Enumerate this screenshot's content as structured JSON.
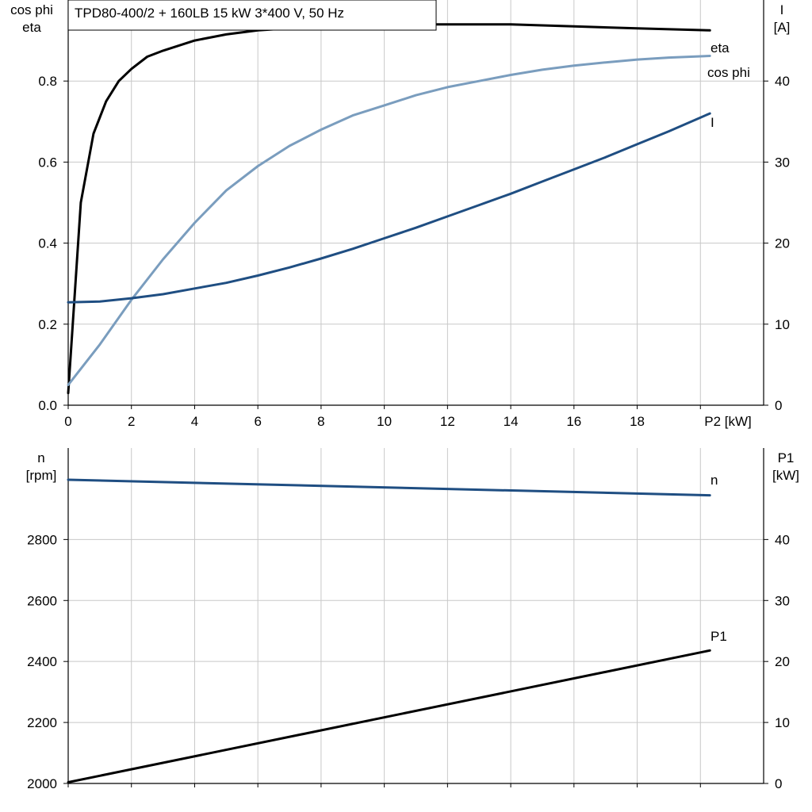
{
  "chart_data": [
    {
      "type": "line",
      "title": "TPD80-400/2 + 160LB   15 kW   3*400 V, 50 Hz",
      "xlabel": "P2 [kW]",
      "ylabel_left": [
        "cos phi",
        "eta"
      ],
      "ylabel_right": [
        "I",
        "[A]"
      ],
      "xlim": [
        0,
        22
      ],
      "ylim_left": [
        0,
        1.0
      ],
      "ylim_right": [
        0,
        50
      ],
      "x_ticks": [
        "0",
        "2",
        "4",
        "6",
        "8",
        "10",
        "12",
        "14",
        "16",
        "18"
      ],
      "y_ticks_left": [
        "0.0",
        "0.2",
        "0.4",
        "0.6",
        "0.8"
      ],
      "y_ticks_right": [
        "0",
        "10",
        "20",
        "30",
        "40"
      ],
      "grid": true,
      "series": [
        {
          "name": "eta",
          "axis": "left",
          "color": "#000000",
          "x": [
            0,
            0.4,
            0.8,
            1.2,
            1.6,
            2,
            2.5,
            3,
            4,
            5,
            6,
            8,
            10,
            12,
            14,
            16,
            18,
            20.3
          ],
          "y": [
            0.03,
            0.5,
            0.67,
            0.75,
            0.8,
            0.83,
            0.86,
            0.875,
            0.9,
            0.915,
            0.925,
            0.935,
            0.94,
            0.94,
            0.94,
            0.935,
            0.93,
            0.925
          ]
        },
        {
          "name": "cos phi",
          "axis": "left",
          "color": "#7a9dbe",
          "x": [
            0,
            1,
            2,
            3,
            4,
            5,
            6,
            7,
            8,
            9,
            10,
            11,
            12,
            13,
            14,
            15,
            16,
            17,
            18,
            19,
            20.3
          ],
          "y": [
            0.05,
            0.15,
            0.26,
            0.36,
            0.45,
            0.53,
            0.59,
            0.64,
            0.68,
            0.715,
            0.74,
            0.765,
            0.785,
            0.8,
            0.815,
            0.828,
            0.838,
            0.846,
            0.853,
            0.858,
            0.862
          ]
        },
        {
          "name": "I",
          "axis": "right",
          "color": "#1f4e82",
          "x": [
            0,
            1,
            2,
            3,
            4,
            5,
            6,
            7,
            8,
            9,
            10,
            11,
            12,
            13,
            14,
            15,
            16,
            17,
            18,
            19,
            20.3
          ],
          "y": [
            12.7,
            12.8,
            13.2,
            13.7,
            14.4,
            15.1,
            16.0,
            17.0,
            18.1,
            19.3,
            20.6,
            21.9,
            23.3,
            24.7,
            26.1,
            27.6,
            29.1,
            30.6,
            32.2,
            33.8,
            36.0
          ]
        }
      ]
    },
    {
      "type": "line",
      "xlabel": "",
      "ylabel_left": [
        "n",
        "[rpm]"
      ],
      "ylabel_right": [
        "P1",
        "[kW]"
      ],
      "xlim": [
        0,
        22
      ],
      "ylim_left": [
        2000,
        3100
      ],
      "ylim_right": [
        0,
        55
      ],
      "y_ticks_left": [
        "2000",
        "2200",
        "2400",
        "2600",
        "2800"
      ],
      "y_ticks_right": [
        "0",
        "10",
        "20",
        "30",
        "40"
      ],
      "grid": true,
      "series": [
        {
          "name": "n",
          "axis": "left",
          "color": "#1f4e82",
          "x": [
            0,
            20.3
          ],
          "y": [
            2996,
            2945
          ]
        },
        {
          "name": "P1",
          "axis": "right",
          "color": "#000000",
          "x": [
            0,
            20.3
          ],
          "y": [
            0.2,
            21.8
          ]
        }
      ]
    }
  ]
}
